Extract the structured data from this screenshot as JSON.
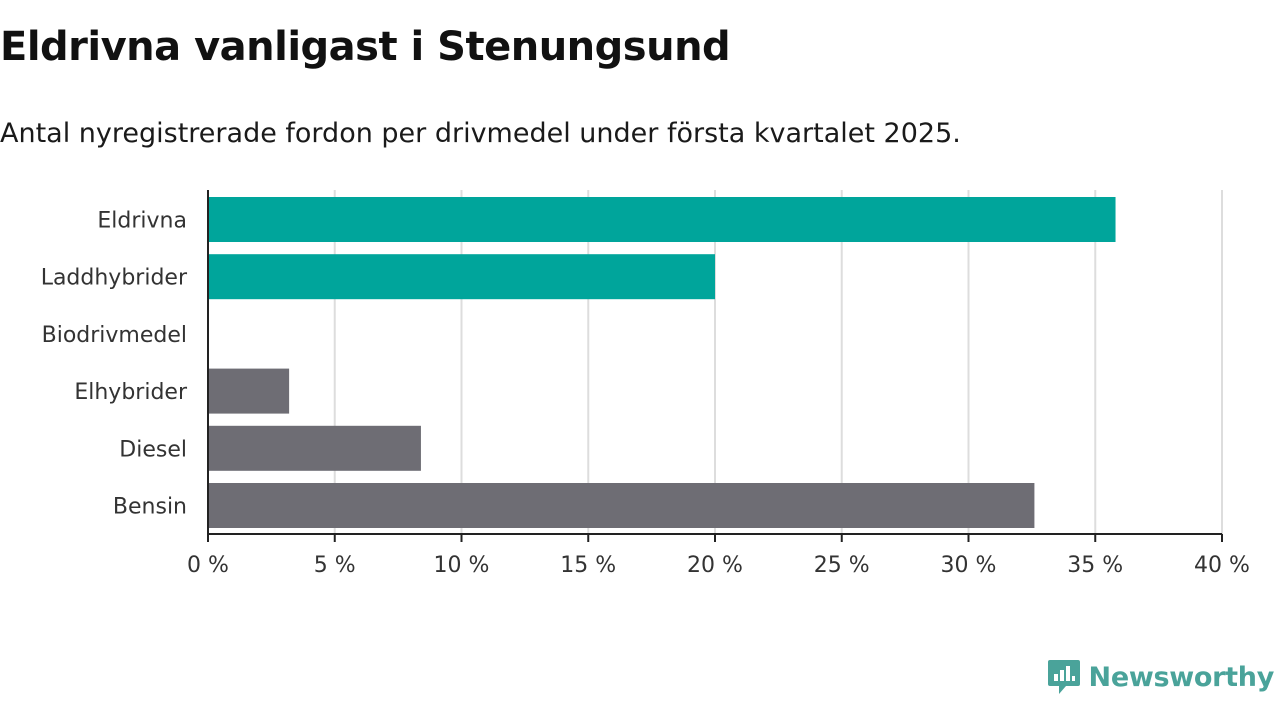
{
  "header": {
    "title": "Eldrivna vanligast i Stenungsund",
    "subtitle": "Antal nyregistrerade fordon per drivmedel under första kvartalet 2025."
  },
  "brand": {
    "name": "Newsworthy",
    "icon": "newsworthy-logo-icon",
    "color": "#4aa39a"
  },
  "chart_data": {
    "type": "bar",
    "orientation": "horizontal",
    "categories": [
      "Eldrivna",
      "Laddhybrider",
      "Biodrivmedel",
      "Elhybrider",
      "Diesel",
      "Bensin"
    ],
    "values": [
      35.8,
      20.0,
      0,
      3.2,
      8.4,
      32.6
    ],
    "colors": [
      "#00a59b",
      "#00a59b",
      "#00a59b",
      "#6e6d74",
      "#6e6d74",
      "#6e6d74"
    ],
    "xlim": [
      0,
      40
    ],
    "xticks": [
      0,
      5,
      10,
      15,
      20,
      25,
      30,
      35,
      40
    ],
    "xtick_labels": [
      "0 %",
      "5 %",
      "10 %",
      "15 %",
      "20 %",
      "25 %",
      "30 %",
      "35 %",
      "40 %"
    ],
    "grid": "vertical",
    "xlabel": "",
    "ylabel": ""
  }
}
